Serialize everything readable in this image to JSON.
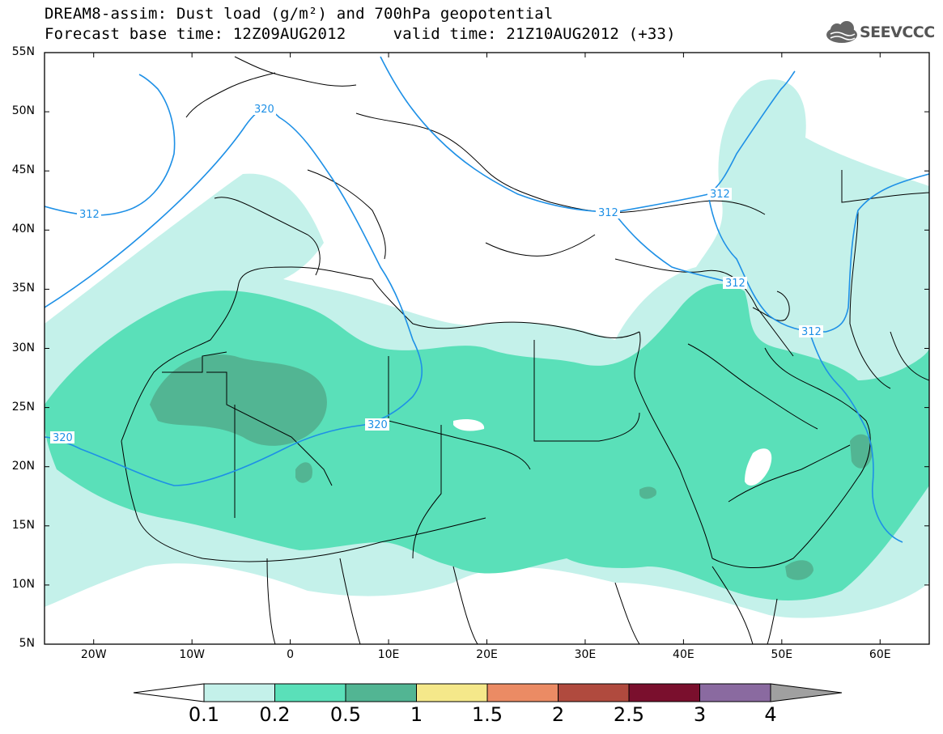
{
  "header": {
    "title_line1": "DREAM8-assim: Dust load (g/m²) and 700hPa geopotential",
    "title_line2": "Forecast base time: 12Z09AUG2012     valid time: 21Z10AUG2012 (+33)",
    "logo_text": "SEEVCCC"
  },
  "map": {
    "lon_range": [
      -25,
      65
    ],
    "lat_range": [
      5,
      55
    ],
    "lat_ticks": [
      "55N",
      "50N",
      "45N",
      "40N",
      "35N",
      "30N",
      "25N",
      "20N",
      "15N",
      "10N",
      "5N"
    ],
    "lon_ticks": [
      "20W",
      "10W",
      "0",
      "10E",
      "20E",
      "30E",
      "40E",
      "50E",
      "60E"
    ],
    "contour_labels": [
      "320",
      "312",
      "312",
      "320",
      "320",
      "312",
      "312",
      "312"
    ],
    "colors": {
      "frame": "#000000",
      "coast": "#000000",
      "contour": "#1E90E6",
      "level_0_1": "#C4F1EA",
      "level_0_2": "#5AE0B9",
      "level_0_5": "#52B593"
    }
  },
  "colorbar": {
    "labels": [
      "0.1",
      "0.2",
      "0.5",
      "1",
      "1.5",
      "2",
      "2.5",
      "3",
      "4"
    ],
    "colors": [
      "#C4F1EA",
      "#5AE0B9",
      "#52B593",
      "#F5E88A",
      "#EB8B64",
      "#B04A3E",
      "#7A0F2D",
      "#8A6AA0"
    ],
    "over_color": "#A0A0A0",
    "under_color": "#FFFFFF"
  }
}
